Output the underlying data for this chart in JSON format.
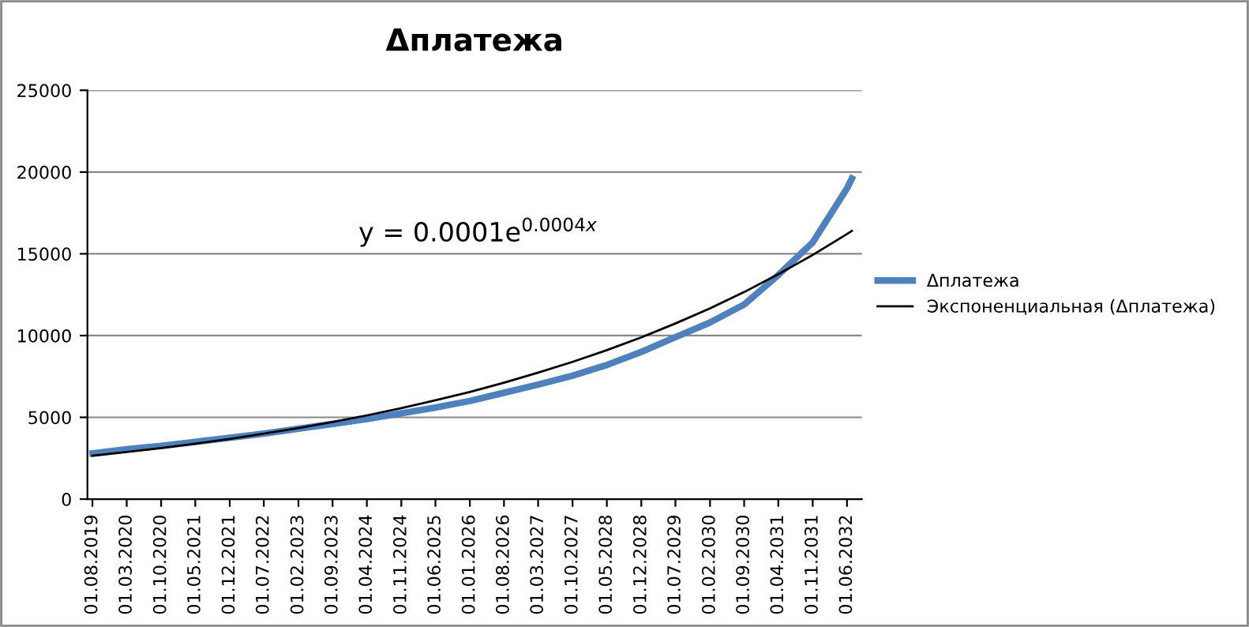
{
  "chart_data": {
    "type": "line",
    "title": "Δплатежа",
    "annotations": [
      "y = 0.0001e$^{0.0004x}$"
    ],
    "ylim": [
      0,
      25000
    ],
    "yticks": [
      0,
      5000,
      10000,
      15000,
      20000,
      25000
    ],
    "xlim": [
      "2019-07-01",
      "2032-09-01"
    ],
    "xticks": [
      {
        "value": "2019-08-01",
        "label": "01.08.2019"
      },
      {
        "value": "2020-03-01",
        "label": "01.03.2020"
      },
      {
        "value": "2020-10-01",
        "label": "01.10.2020"
      },
      {
        "value": "2021-05-01",
        "label": "01.05.2021"
      },
      {
        "value": "2021-12-01",
        "label": "01.12.2021"
      },
      {
        "value": "2022-07-01",
        "label": "01.07.2022"
      },
      {
        "value": "2023-02-01",
        "label": "01.02.2023"
      },
      {
        "value": "2023-09-01",
        "label": "01.09.2023"
      },
      {
        "value": "2024-04-01",
        "label": "01.04.2024"
      },
      {
        "value": "2024-11-01",
        "label": "01.11.2024"
      },
      {
        "value": "2025-06-01",
        "label": "01.06.2025"
      },
      {
        "value": "2026-01-01",
        "label": "01.01.2026"
      },
      {
        "value": "2026-08-01",
        "label": "01.08.2026"
      },
      {
        "value": "2027-03-01",
        "label": "01.03.2027"
      },
      {
        "value": "2027-10-01",
        "label": "01.10.2027"
      },
      {
        "value": "2028-05-01",
        "label": "01.05.2028"
      },
      {
        "value": "2028-12-01",
        "label": "01.12.2028"
      },
      {
        "value": "2029-07-01",
        "label": "01.07.2029"
      },
      {
        "value": "2030-02-01",
        "label": "01.02.2030"
      },
      {
        "value": "2030-09-01",
        "label": "01.09.2030"
      },
      {
        "value": "2031-04-01",
        "label": "01.04.2031"
      },
      {
        "value": "2031-11-01",
        "label": "01.11.2031"
      },
      {
        "value": "2032-06-01",
        "label": "01.06.2032"
      }
    ],
    "x": [
      "2019-08-01",
      "2020-03-01",
      "2020-10-01",
      "2021-05-01",
      "2021-12-01",
      "2022-07-01",
      "2023-02-01",
      "2023-09-01",
      "2024-04-01",
      "2024-11-01",
      "2025-06-01",
      "2026-01-01",
      "2026-08-01",
      "2027-03-01",
      "2027-10-01",
      "2028-05-01",
      "2028-12-01",
      "2029-07-01",
      "2030-02-01",
      "2030-09-01",
      "2031-04-01",
      "2031-11-01",
      "2032-06-01",
      "2032-07-01"
    ],
    "grid": "y",
    "legend": "right",
    "marker": "none",
    "series": [
      {
        "name": "Δплатежа",
        "color": "#4f81bd",
        "values": [
          2800,
          3050,
          3250,
          3500,
          3750,
          4000,
          4300,
          4600,
          4900,
          5250,
          5600,
          6000,
          6500,
          7000,
          7550,
          8200,
          9000,
          9900,
          10800,
          11900,
          13700,
          15700,
          19000,
          19600
        ]
      },
      {
        "name": "Экспоненциальная (Δплатежа)",
        "color": "#000000",
        "values": [
          2650,
          2880,
          3120,
          3390,
          3680,
          4000,
          4340,
          4720,
          5120,
          5560,
          6040,
          6550,
          7120,
          7730,
          8390,
          9110,
          9890,
          10740,
          11660,
          12660,
          13750,
          14930,
          16210,
          16400
        ]
      }
    ]
  }
}
